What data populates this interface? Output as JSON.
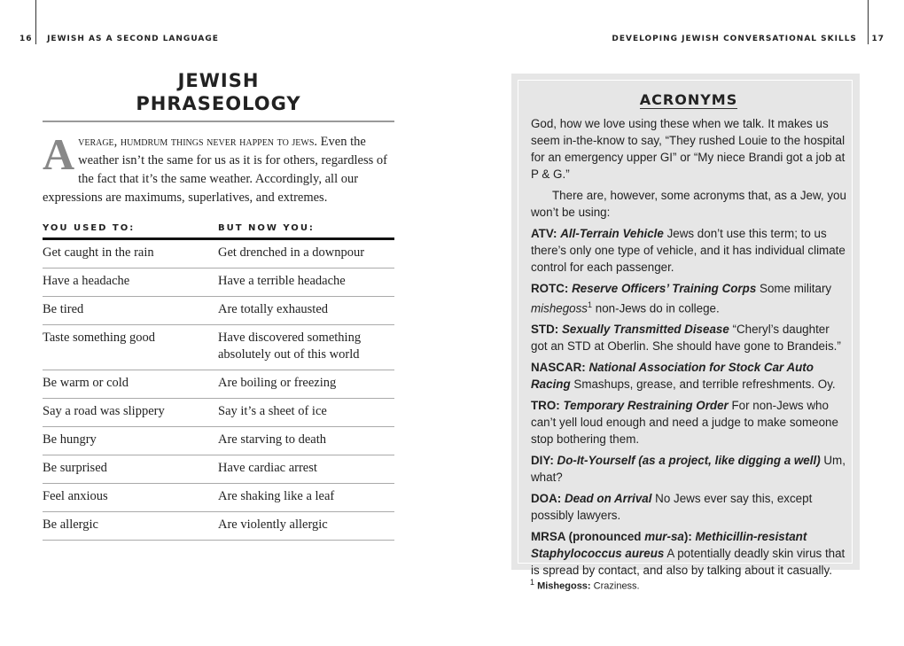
{
  "left_page": {
    "number": "16",
    "running_head": "JEWISH AS A SECOND LANGUAGE",
    "title": "JEWISH PHRASEOLOGY",
    "intro_dropcap": "A",
    "intro_lead": "verage, humdrum things never happen to jews.",
    "intro_text": "Even the weather isn’t the same for us as it is for others, regardless of the fact that it’s the same weather. Accordingly, all our expressions are maximums, superlatives, and extremes.",
    "table": {
      "headers": [
        "YOU USED TO:",
        "BUT NOW YOU:"
      ],
      "rows": [
        [
          "Get caught in the rain",
          "Get drenched in a downpour"
        ],
        [
          "Have a headache",
          "Have a terrible headache"
        ],
        [
          "Be tired",
          "Are totally exhausted"
        ],
        [
          "Taste something good",
          "Have discovered something absolutely out of this world"
        ],
        [
          "Be warm or cold",
          "Are boiling or freezing"
        ],
        [
          "Say a road was slippery",
          "Say it’s a sheet of ice"
        ],
        [
          "Be hungry",
          "Are starving to death"
        ],
        [
          "Be surprised",
          "Have cardiac arrest"
        ],
        [
          "Feel anxious",
          "Are shaking like a leaf"
        ],
        [
          "Be allergic",
          "Are violently allergic"
        ]
      ]
    }
  },
  "right_page": {
    "number": "17",
    "running_head": "DEVELOPING JEWISH CONVERSATIONAL SKILLS",
    "sidebar": {
      "title": "ACRONYMS",
      "paragraphs": [
        "God, how we love using these when we talk. It makes us seem in-the-know to say, “They rushed Louie to the hospital for an emergency upper GI” or “My niece Brandi got a job at P & G.”",
        "There are, however, some acronyms that, as a Jew, you won’t be using:"
      ],
      "entries": [
        {
          "term": "ATV:",
          "expansion": "All-Terrain Vehicle",
          "text": "Jews don’t use this term; to us there’s only one type of vehicle, and it has individual climate control for each passenger."
        },
        {
          "term": "ROTC:",
          "expansion": "Reserve Officers’ Training Corps",
          "text": "Some military",
          "note_word": "mishegoss",
          "note_marker": "1",
          "text_after": "non-Jews do in college."
        },
        {
          "term": "STD:",
          "expansion": "Sexually Transmitted Disease",
          "text": "“Cheryl’s daughter got an STD at Oberlin. She should have gone to Brandeis.”"
        },
        {
          "term": "NASCAR:",
          "expansion": "National Association for Stock Car Auto Racing",
          "text": "Smashups, grease, and terrible refreshments. Oy."
        },
        {
          "term": "TRO:",
          "expansion": "Temporary Restraining Order",
          "text": "For non-Jews who can’t yell loud enough and need a judge to make someone stop bothering them."
        },
        {
          "term": "DIY:",
          "expansion": "Do-It-Yourself (as a project, like digging a well)",
          "text": "Um, what?"
        },
        {
          "term": "DOA:",
          "expansion": "Dead on Arrival",
          "text": "No Jews ever say this, except possibly lawyers."
        },
        {
          "term": "MRSA (pronounced",
          "term_italic": "mur-sa",
          "term_after": "):",
          "expansion": "Methicillin-resistant Staphylococcus aureus",
          "text": "A potentially deadly skin virus that is spread by contact, and also by talking about it casually."
        }
      ]
    },
    "footnote": {
      "marker": "1",
      "term": "Mishegoss:",
      "text": "Craziness."
    }
  }
}
